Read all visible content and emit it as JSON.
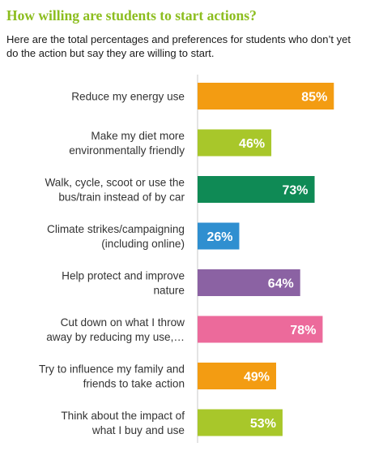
{
  "chart_data": {
    "type": "bar",
    "orientation": "horizontal",
    "title": "How willing are students to start actions?",
    "subtitle": "Here are the total percentages and preferences for students who don’t yet do the action but say they are willing to start.",
    "categories": [
      "Reduce my energy use",
      "Make my diet more environmentally friendly",
      "Walk, cycle, scoot or use the bus/train instead of by car",
      "Climate strikes/campaigning (including online)",
      "Help protect and improve nature",
      "Cut down on what I throw away by reducing my use,…",
      "Try to influence my family and friends to take action",
      "Think about the impact of what I buy and use"
    ],
    "category_lines": [
      [
        "Reduce my energy use"
      ],
      [
        "Make my diet more",
        "environmentally friendly"
      ],
      [
        "Walk, cycle, scoot or use the",
        "bus/train instead of by car"
      ],
      [
        "Climate strikes/campaigning",
        "(including online)"
      ],
      [
        "Help protect and improve",
        "nature"
      ],
      [
        "Cut down on what I throw",
        "away by reducing my use,…"
      ],
      [
        "Try to influence my family and",
        "friends to take action"
      ],
      [
        "Think about the impact of",
        "what I buy and use"
      ]
    ],
    "values": [
      85,
      46,
      73,
      26,
      64,
      78,
      49,
      53
    ],
    "value_labels": [
      "85%",
      "46%",
      "73%",
      "26%",
      "64%",
      "78%",
      "49%",
      "53%"
    ],
    "colors": [
      "#f39c12",
      "#a8c72a",
      "#0f8a55",
      "#2f8fd0",
      "#8b62a3",
      "#ec6a9b",
      "#f39c12",
      "#a8c72a"
    ],
    "xlim": [
      0,
      100
    ],
    "xlabel": "",
    "ylabel": "",
    "grid": false,
    "legend": "none"
  }
}
